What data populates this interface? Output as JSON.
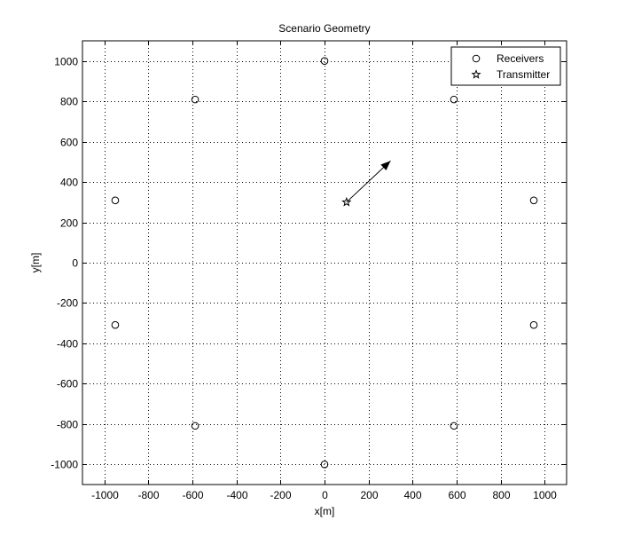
{
  "chart_data": {
    "type": "scatter",
    "title": "Scenario Geometry",
    "xlabel": "x[m]",
    "ylabel": "y[m]",
    "xlim": [
      -1100,
      1100
    ],
    "ylim": [
      -1100,
      1100
    ],
    "xticks": [
      -1000,
      -800,
      -600,
      -400,
      -200,
      0,
      200,
      400,
      600,
      800,
      1000
    ],
    "yticks": [
      -1000,
      -800,
      -600,
      -400,
      -200,
      0,
      200,
      400,
      600,
      800,
      1000
    ],
    "xtick_labels": [
      "-1000",
      "-800",
      "-600",
      "-400",
      "-200",
      "0",
      "200",
      "400",
      "600",
      "800",
      "1000"
    ],
    "ytick_labels": [
      "-1000",
      "-800",
      "-600",
      "-400",
      "-200",
      "0",
      "200",
      "400",
      "600",
      "800",
      "1000"
    ],
    "grid": "dotted",
    "legend_position": "top-right",
    "series": [
      {
        "name": "Receivers",
        "marker": "circle",
        "points": [
          [
            0,
            1000
          ],
          [
            588,
            809
          ],
          [
            951,
            309
          ],
          [
            951,
            -309
          ],
          [
            588,
            -809
          ],
          [
            0,
            -1000
          ],
          [
            -588,
            -809
          ],
          [
            -951,
            -309
          ],
          [
            -951,
            309
          ],
          [
            -588,
            809
          ]
        ]
      },
      {
        "name": "Transmitter",
        "marker": "star",
        "points": [
          [
            100,
            300
          ]
        ]
      }
    ],
    "annotations": [
      {
        "type": "arrow",
        "from": [
          100,
          300
        ],
        "to": [
          300,
          505
        ]
      }
    ]
  }
}
